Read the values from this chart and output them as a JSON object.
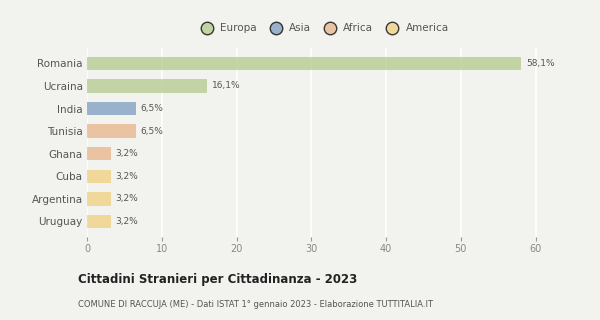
{
  "categories": [
    "Romania",
    "Ucraina",
    "India",
    "Tunisia",
    "Ghana",
    "Cuba",
    "Argentina",
    "Uruguay"
  ],
  "values": [
    58.1,
    16.1,
    6.5,
    6.5,
    3.2,
    3.2,
    3.2,
    3.2
  ],
  "labels": [
    "58,1%",
    "16,1%",
    "6,5%",
    "6,5%",
    "3,2%",
    "3,2%",
    "3,2%",
    "3,2%"
  ],
  "colors": [
    "#b5c98e",
    "#b5c98e",
    "#7b9bbf",
    "#e8b48a",
    "#e8b48a",
    "#f0d080",
    "#f0d080",
    "#f0d080"
  ],
  "legend": [
    {
      "label": "Europa",
      "color": "#b5c98e"
    },
    {
      "label": "Asia",
      "color": "#7b9bbf"
    },
    {
      "label": "Africa",
      "color": "#e8b48a"
    },
    {
      "label": "America",
      "color": "#f0d080"
    }
  ],
  "xlim": [
    0,
    63
  ],
  "xticks": [
    0,
    10,
    20,
    30,
    40,
    50,
    60
  ],
  "title": "Cittadini Stranieri per Cittadinanza - 2023",
  "subtitle": "COMUNE DI RACCUJA (ME) - Dati ISTAT 1° gennaio 2023 - Elaborazione TUTTITALIA.IT",
  "background_color": "#f2f2ee",
  "grid_color": "#ffffff",
  "bar_height": 0.6,
  "bar_alpha": 0.75
}
